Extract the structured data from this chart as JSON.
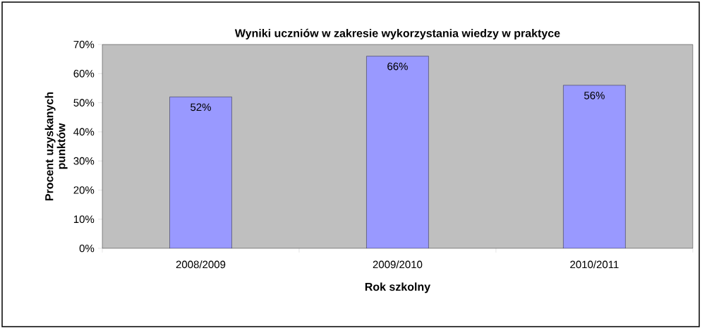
{
  "chart_data": {
    "type": "bar",
    "title": "Wyniki uczniów w zakresie wykorzystania wiedzy w praktyce",
    "xlabel": "Rok szkolny",
    "ylabel": "Procent uzyskanych punktów",
    "categories": [
      "2008/2009",
      "2009/2010",
      "2010/2011"
    ],
    "values": [
      52,
      66,
      56
    ],
    "color": "#9999ff",
    "value_labels": [
      "52%",
      "66%",
      "56%"
    ],
    "ylim": [
      0,
      70
    ],
    "yticks": [
      {
        "value": 0,
        "label": "0%"
      },
      {
        "value": 10,
        "label": "10%"
      },
      {
        "value": 20,
        "label": "20%"
      },
      {
        "value": 30,
        "label": "30%"
      },
      {
        "value": 40,
        "label": "40%"
      },
      {
        "value": 50,
        "label": "50%"
      },
      {
        "value": 60,
        "label": "60%"
      },
      {
        "value": 70,
        "label": "70%"
      }
    ]
  }
}
